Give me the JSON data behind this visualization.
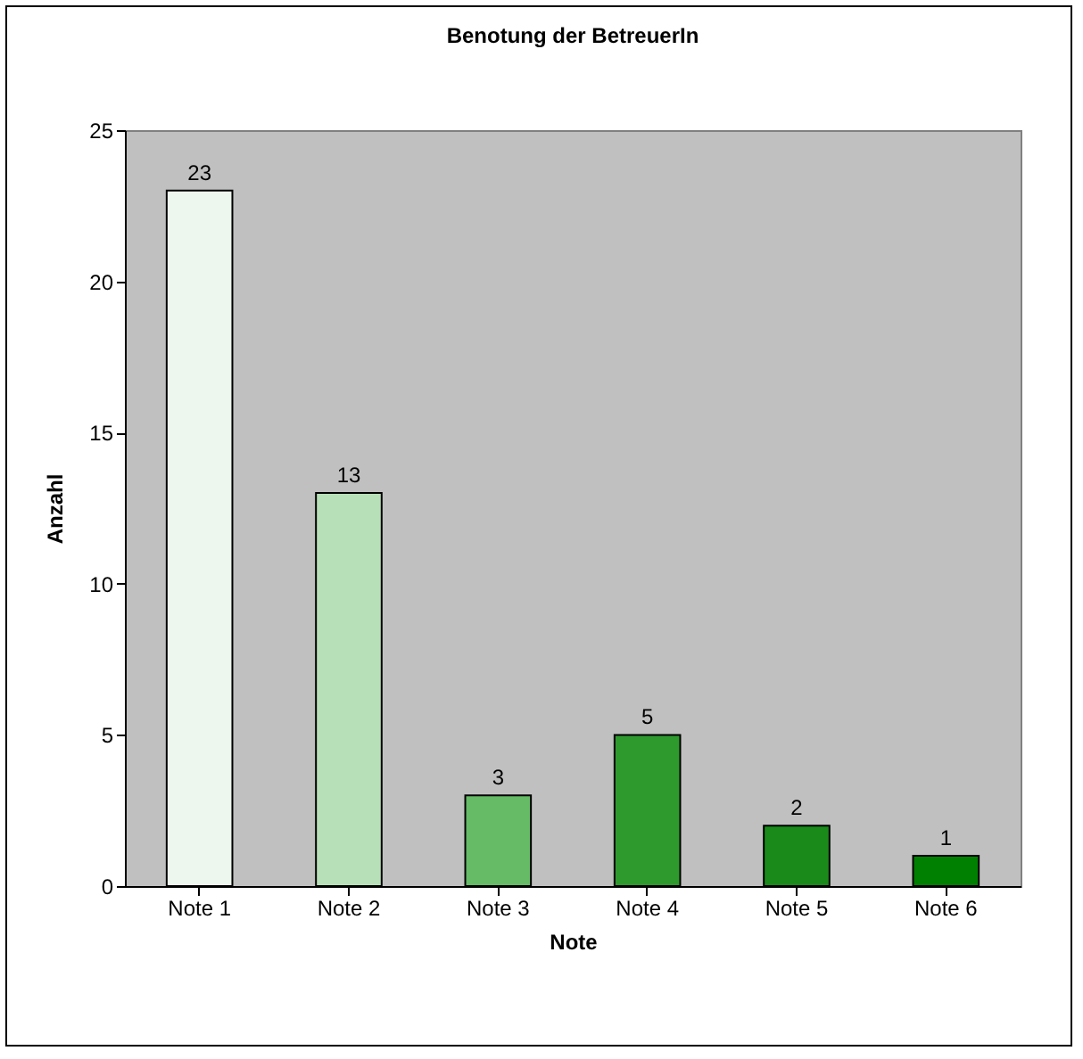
{
  "chart_data": {
    "type": "bar",
    "title": "Benotung der BetreuerIn",
    "xlabel": "Note",
    "ylabel": "Anzahl",
    "categories": [
      "Note 1",
      "Note 2",
      "Note 3",
      "Note 4",
      "Note 5",
      "Note 6"
    ],
    "values": [
      23,
      13,
      3,
      5,
      2,
      1
    ],
    "colors": [
      "#eef7ee",
      "#b8e0b8",
      "#66bb66",
      "#2e9a2e",
      "#1a8a1a",
      "#008000"
    ],
    "ylim": [
      0,
      25
    ],
    "yticks": [
      0,
      5,
      10,
      15,
      20,
      25
    ],
    "grid": false,
    "data_labels": true
  }
}
